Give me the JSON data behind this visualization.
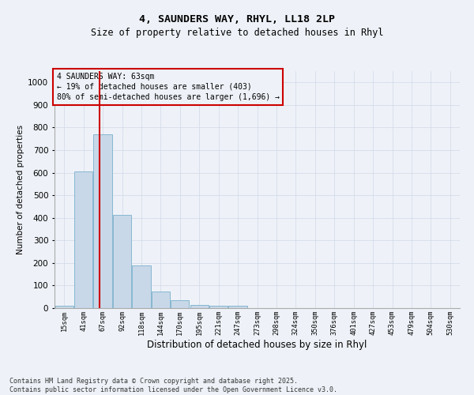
{
  "title1": "4, SAUNDERS WAY, RHYL, LL18 2LP",
  "title2": "Size of property relative to detached houses in Rhyl",
  "xlabel": "Distribution of detached houses by size in Rhyl",
  "ylabel": "Number of detached properties",
  "bins": [
    "15sqm",
    "41sqm",
    "67sqm",
    "92sqm",
    "118sqm",
    "144sqm",
    "170sqm",
    "195sqm",
    "221sqm",
    "247sqm",
    "273sqm",
    "298sqm",
    "324sqm",
    "350sqm",
    "376sqm",
    "401sqm",
    "427sqm",
    "453sqm",
    "479sqm",
    "504sqm",
    "530sqm"
  ],
  "n_bins": 21,
  "values": [
    10,
    605,
    770,
    413,
    190,
    75,
    35,
    15,
    10,
    10,
    0,
    0,
    0,
    0,
    0,
    0,
    0,
    0,
    0,
    0,
    0
  ],
  "bar_color": "#c8d8e8",
  "bar_edge_color": "#7ab0cc",
  "grid_color": "#d0d8e8",
  "property_bin_index": 2,
  "property_line_color": "#cc0000",
  "annotation_box_color": "#cc0000",
  "annotation_line1": "4 SAUNDERS WAY: 63sqm",
  "annotation_line2": "← 19% of detached houses are smaller (403)",
  "annotation_line3": "80% of semi-detached houses are larger (1,696) →",
  "annotation_fontsize": 7.0,
  "ylim": [
    0,
    1050
  ],
  "yticks": [
    0,
    100,
    200,
    300,
    400,
    500,
    600,
    700,
    800,
    900,
    1000
  ],
  "title1_fontsize": 9.5,
  "title2_fontsize": 8.5,
  "xlabel_fontsize": 8.5,
  "ylabel_fontsize": 7.5,
  "footer": "Contains HM Land Registry data © Crown copyright and database right 2025.\nContains public sector information licensed under the Open Government Licence v3.0.",
  "footer_fontsize": 6.0,
  "background_color": "#eef2f8"
}
